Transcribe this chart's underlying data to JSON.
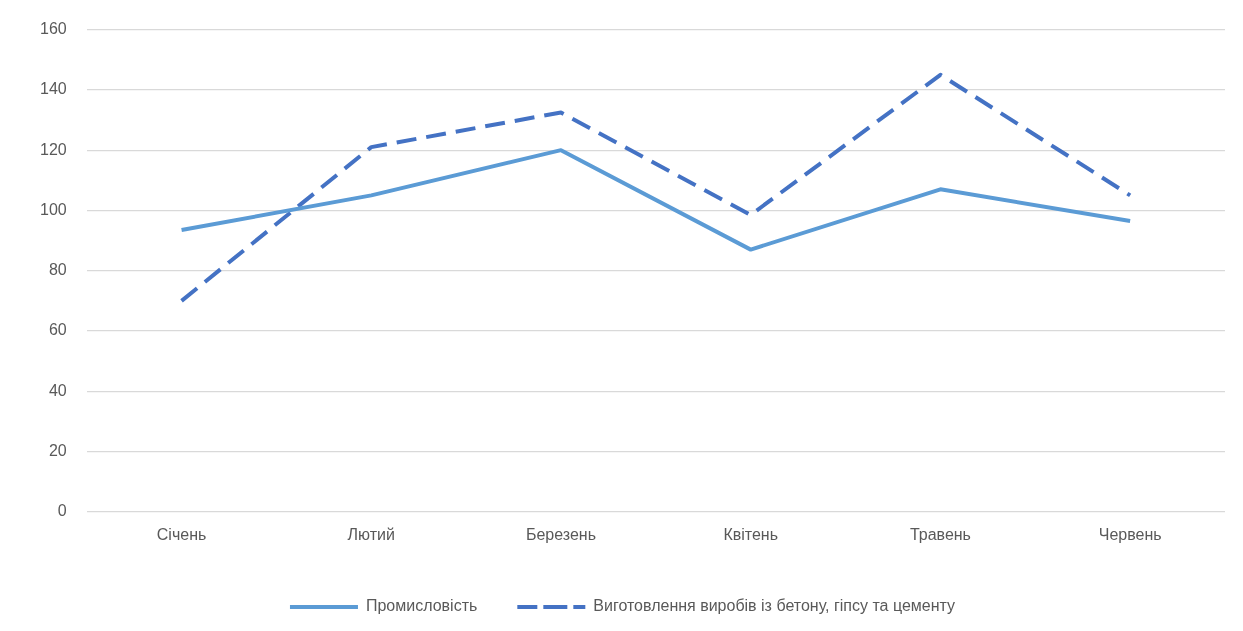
{
  "chart_data": {
    "type": "line",
    "categories": [
      "Січень",
      "Лютий",
      "Березень",
      "Квітень",
      "Травень",
      "Червень"
    ],
    "series": [
      {
        "name": "Промисловість",
        "color": "#5b9bd5",
        "values": [
          93.5,
          105,
          120,
          87,
          107,
          96.5
        ],
        "line_style": "solid"
      },
      {
        "name": "Виготовлення виробів із бетону, гіпсу та цементу",
        "color": "#4472c4",
        "values": [
          70,
          121,
          132.5,
          98.5,
          145,
          105
        ],
        "line_style": "dashed"
      }
    ],
    "ylim": [
      0,
      160
    ],
    "yticks": [
      0,
      20,
      40,
      60,
      80,
      100,
      120,
      140,
      160
    ],
    "grid": "y",
    "legend": "bottom",
    "marker": "none"
  }
}
